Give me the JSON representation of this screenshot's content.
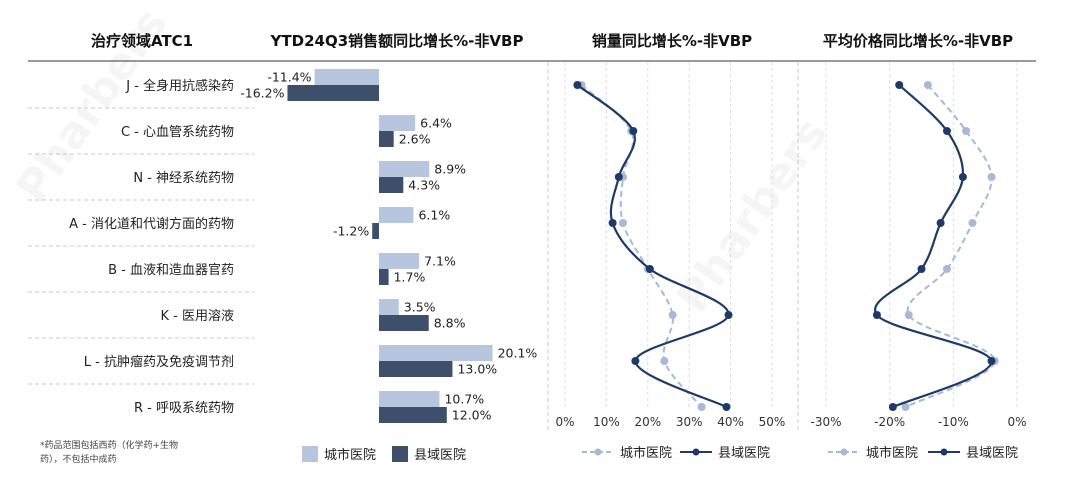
{
  "watermark": "Pharbers",
  "headers": {
    "category": "治疗领域ATC1",
    "sales": "YTD24Q3销售额同比增长%-非VBP",
    "volume": "销量同比增长%-非VBP",
    "price": "平均价格同比增长%-非VBP"
  },
  "footnote": {
    "line1": "*药品范围包括西药（化学药+生物",
    "line2": "药），不包括中成药"
  },
  "legend": {
    "city": "城市医院",
    "county": "县域医院"
  },
  "colors": {
    "city": "#b7c5df",
    "county": "#3e4f6b",
    "city_line": "#a8b8d6",
    "county_line": "#1e3a66",
    "grid": "#c8c8c8"
  },
  "chart_data": [
    {
      "type": "bar",
      "orientation": "horizontal",
      "title": "YTD24Q3销售额同比增长%-非VBP",
      "categories": [
        "J - 全身用抗感染药",
        "C - 心血管系统药物",
        "N - 神经系统药物",
        "A - 消化道和代谢方面的药物",
        "B - 血液和造血器官药",
        "K - 医用溶液",
        "L - 抗肿瘤药及免疫调节剂",
        "R - 呼吸系统药物"
      ],
      "series": [
        {
          "name": "城市医院",
          "values": [
            -11.4,
            6.4,
            8.9,
            6.1,
            7.1,
            3.5,
            20.1,
            10.7
          ],
          "labels": [
            "-11.4%",
            "6.4%",
            "8.9%",
            "6.1%",
            "7.1%",
            "3.5%",
            "20.1%",
            "10.7%"
          ]
        },
        {
          "name": "县域医院",
          "values": [
            -16.2,
            2.6,
            4.3,
            -1.2,
            1.7,
            8.8,
            13.0,
            12.0
          ],
          "labels": [
            "-16.2%",
            "2.6%",
            "4.3%",
            "-1.2%",
            "1.7%",
            "8.8%",
            "13.0%",
            "12.0%"
          ]
        }
      ]
    },
    {
      "type": "line",
      "title": "销量同比增长%-非VBP",
      "categories": [
        "J - 全身用抗感染药",
        "C - 心血管系统药物",
        "N - 神经系统药物",
        "A - 消化道和代谢方面的药物",
        "B - 血液和造血器官药",
        "K - 医用溶液",
        "L - 抗肿瘤药及免疫调节剂",
        "R - 呼吸系统药物"
      ],
      "xlim": [
        0,
        50
      ],
      "xticks": [
        0,
        10,
        20,
        30,
        40,
        50
      ],
      "xtick_labels": [
        "0%",
        "10%",
        "20%",
        "30%",
        "40%",
        "50%"
      ],
      "series": [
        {
          "name": "城市医院",
          "values": [
            4,
            16,
            14,
            14,
            20,
            26,
            24,
            33
          ]
        },
        {
          "name": "县域医院",
          "values": [
            3,
            16.5,
            13,
            11.5,
            20.5,
            39.5,
            17,
            39
          ]
        }
      ]
    },
    {
      "type": "line",
      "title": "平均价格同比增长%-非VBP",
      "categories": [
        "J - 全身用抗感染药",
        "C - 心血管系统药物",
        "N - 神经系统药物",
        "A - 消化道和代谢方面的药物",
        "B - 血液和造血器官药",
        "K - 医用溶液",
        "L - 抗肿瘤药及免疫调节剂",
        "R - 呼吸系统药物"
      ],
      "xlim": [
        -30,
        0
      ],
      "xticks": [
        -30,
        -20,
        -10,
        0
      ],
      "xtick_labels": [
        "-30%",
        "-20%",
        "-10%",
        "0%"
      ],
      "series": [
        {
          "name": "城市医院",
          "values": [
            -14,
            -8,
            -4,
            -7,
            -11,
            -17,
            -3.5,
            -17.5
          ]
        },
        {
          "name": "县域医院",
          "values": [
            -18.5,
            -11,
            -8.5,
            -12,
            -15,
            -22,
            -4,
            -19.5
          ]
        }
      ]
    }
  ]
}
